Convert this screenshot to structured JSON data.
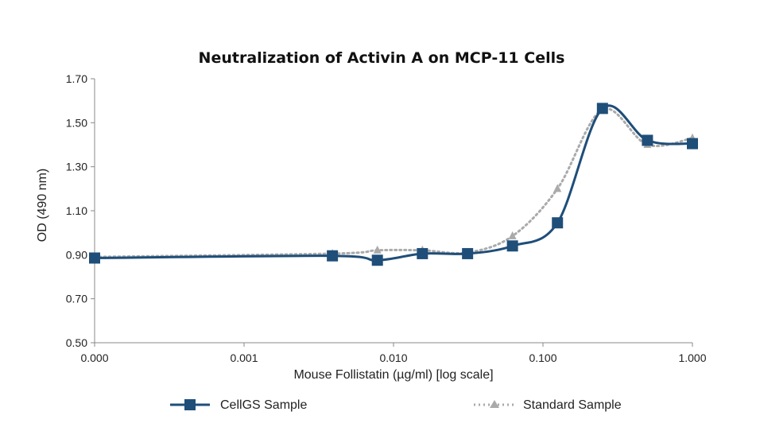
{
  "chart_data": {
    "type": "line",
    "title": "Neutralization of Activin A on MCP-11 Cells",
    "xlabel": "Mouse Follistatin (µg/ml) [log scale]",
    "ylabel": "OD (490 nm)",
    "x_scale": "log",
    "x_ticks": [
      "0.000",
      "0.001",
      "0.010",
      "0.100",
      "1.000"
    ],
    "y_ticks": [
      "0.50",
      "0.70",
      "0.90",
      "1.10",
      "1.30",
      "1.50",
      "1.70"
    ],
    "ylim": [
      0.5,
      1.7
    ],
    "grid": false,
    "legend_position": "bottom",
    "colors": {
      "cellgs": "#1f4e79",
      "standard": "#aaaaaa",
      "axis": "#888888"
    },
    "series": [
      {
        "name": "CellGS Sample",
        "style": "solid-square",
        "x": [
          0.0001,
          0.0039,
          0.0078,
          0.0156,
          0.0313,
          0.0625,
          0.125,
          0.25,
          0.5,
          1.0
        ],
        "values": [
          0.885,
          0.895,
          0.875,
          0.905,
          0.905,
          0.94,
          1.045,
          1.565,
          1.42,
          1.405
        ]
      },
      {
        "name": "Standard Sample",
        "style": "dotted-triangle",
        "x": [
          0.0001,
          0.0039,
          0.0078,
          0.0156,
          0.0313,
          0.0625,
          0.125,
          0.25,
          0.5,
          1.0
        ],
        "values": [
          0.89,
          0.905,
          0.92,
          0.92,
          0.91,
          0.985,
          1.2,
          1.56,
          1.4,
          1.43
        ]
      }
    ]
  }
}
